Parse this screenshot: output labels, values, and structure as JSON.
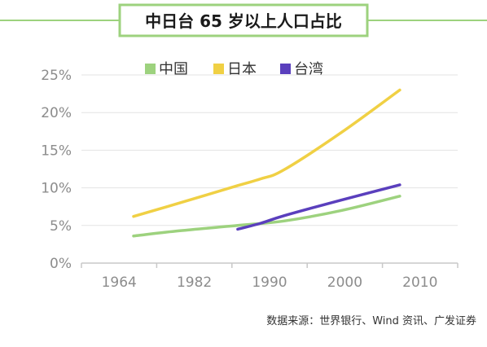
{
  "chart_data": {
    "type": "line",
    "title": "中日台 65 岁以上人口占比",
    "x_labels": [
      "1964",
      "1982",
      "1990",
      "2000",
      "2010"
    ],
    "xlim": [
      1955,
      2020
    ],
    "ylim": [
      0,
      25
    ],
    "y_ticks": [
      0,
      5,
      10,
      15,
      20,
      25
    ],
    "y_tick_labels": [
      "0%",
      "5%",
      "10%",
      "15%",
      "20%",
      "25%"
    ],
    "legend_position": "top-center",
    "series": [
      {
        "name": "中国",
        "color": "#9dd27e",
        "points": [
          [
            1964,
            3.6
          ],
          [
            1972,
            4.3
          ],
          [
            1982,
            5.0
          ],
          [
            1990,
            5.6
          ],
          [
            2000,
            7.0
          ],
          [
            2010,
            8.9
          ]
        ]
      },
      {
        "name": "日本",
        "color": "#f0d044",
        "points": [
          [
            1964,
            6.2
          ],
          [
            1972,
            8.0
          ],
          [
            1982,
            10.3
          ],
          [
            1986,
            11.2
          ],
          [
            1990,
            12.4
          ],
          [
            2000,
            17.4
          ],
          [
            2010,
            23.0
          ]
        ]
      },
      {
        "name": "台湾",
        "color": "#5a3fbd",
        "points": [
          [
            1982,
            4.5
          ],
          [
            1986,
            5.3
          ],
          [
            1990,
            6.3
          ],
          [
            2000,
            8.4
          ],
          [
            2010,
            10.4
          ]
        ]
      }
    ],
    "source": "数据来源：世界银行、Wind 资讯、广发证券"
  }
}
